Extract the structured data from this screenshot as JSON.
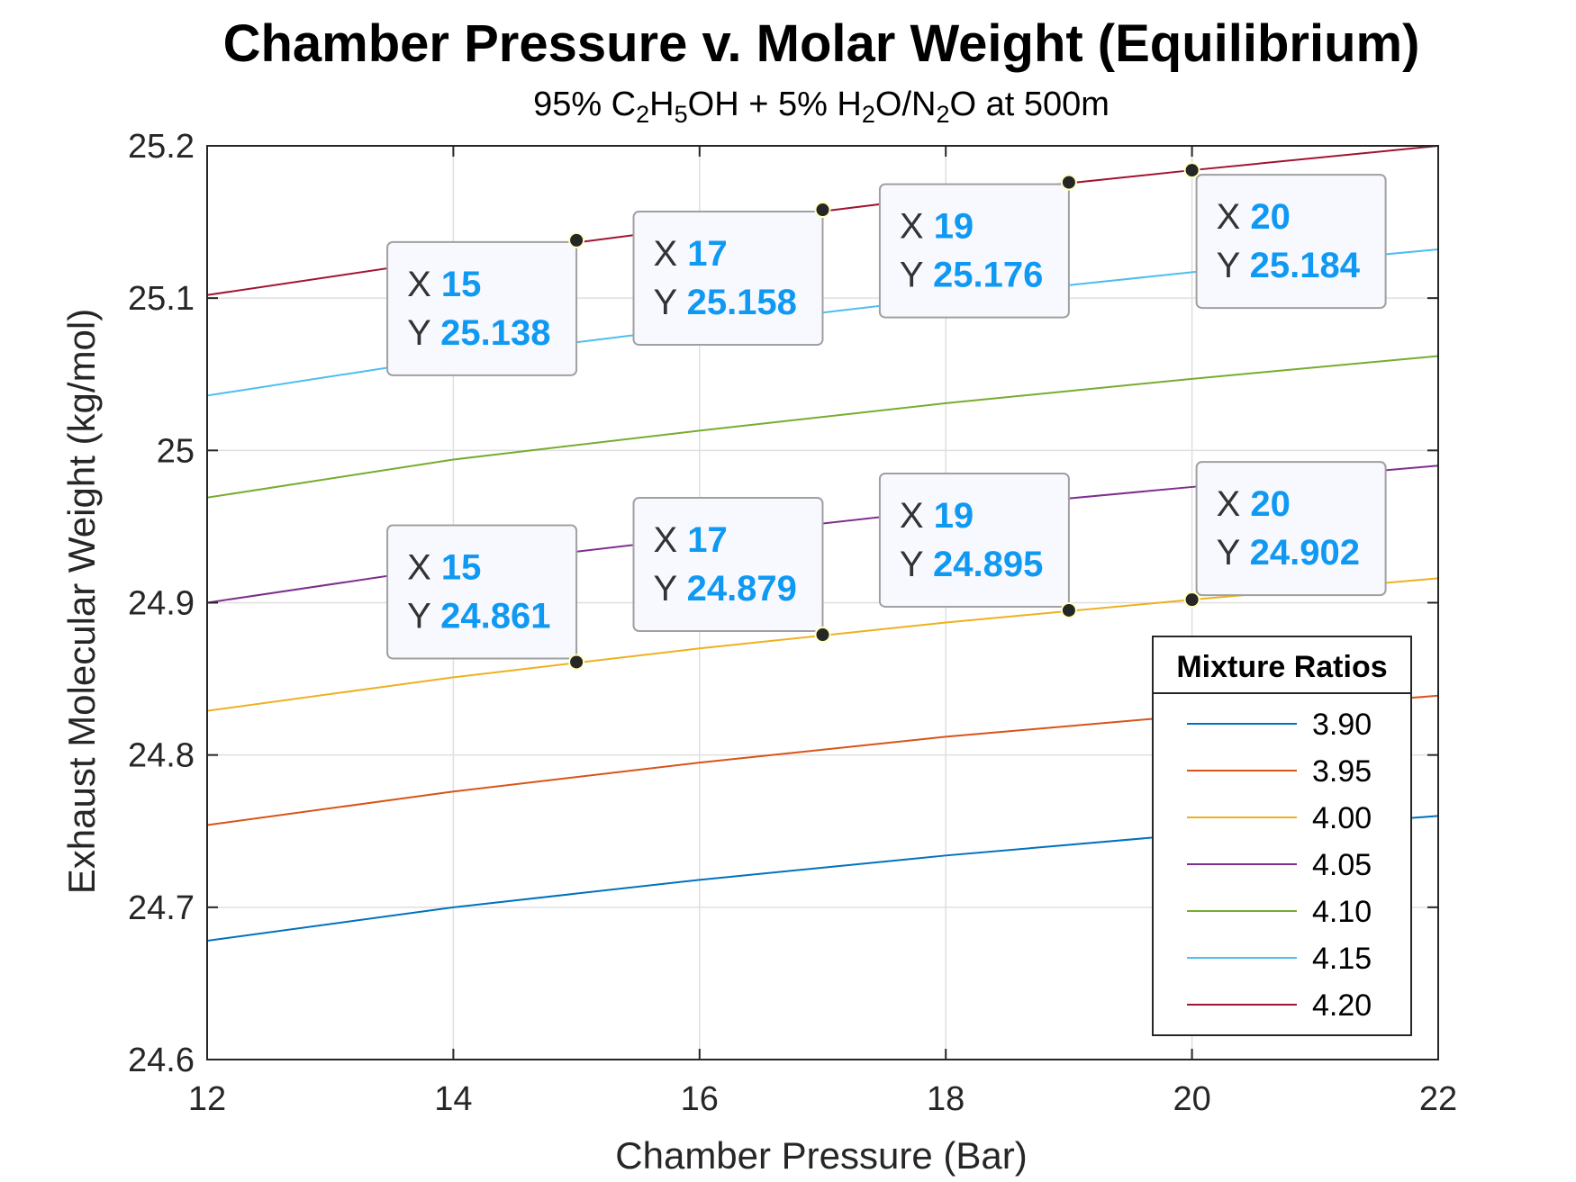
{
  "chart_data": {
    "type": "line",
    "title": "Chamber Pressure v. Molar Weight (Equilibrium)",
    "subtitle_parts": [
      {
        "t": "95% C",
        "sub": false
      },
      {
        "t": "2",
        "sub": true
      },
      {
        "t": "H",
        "sub": false
      },
      {
        "t": "5",
        "sub": true
      },
      {
        "t": "OH + 5% H",
        "sub": false
      },
      {
        "t": "2",
        "sub": true
      },
      {
        "t": "O/N",
        "sub": false
      },
      {
        "t": "2",
        "sub": true
      },
      {
        "t": "O at 500m",
        "sub": false
      }
    ],
    "xlabel": "Chamber Pressure (Bar)",
    "ylabel": "Exhaust Molecular Weight (kg/mol)",
    "xlim": [
      12,
      22
    ],
    "ylim": [
      24.6,
      25.2
    ],
    "xticks": [
      12,
      14,
      16,
      18,
      20,
      22
    ],
    "yticks": [
      24.6,
      24.7,
      24.8,
      24.9,
      25,
      25.1,
      25.2
    ],
    "xtick_labels": [
      "12",
      "14",
      "16",
      "18",
      "20",
      "22"
    ],
    "ytick_labels": [
      "24.6",
      "24.7",
      "24.8",
      "24.9",
      "25",
      "25.1",
      "25.2"
    ],
    "grid": true,
    "x": [
      12,
      14,
      16,
      18,
      20,
      22
    ],
    "series": [
      {
        "name": "3.90",
        "color": "#0072bd",
        "values": [
          24.678,
          24.7,
          24.718,
          24.734,
          24.748,
          24.76
        ]
      },
      {
        "name": "3.95",
        "color": "#d95319",
        "values": [
          24.754,
          24.776,
          24.795,
          24.812,
          24.826,
          24.839
        ]
      },
      {
        "name": "4.00",
        "color": "#edb120",
        "values": [
          24.829,
          24.851,
          24.87,
          24.887,
          24.902,
          24.916
        ]
      },
      {
        "name": "4.05",
        "color": "#7e2f8e",
        "values": [
          24.9,
          24.924,
          24.943,
          24.961,
          24.976,
          24.99
        ]
      },
      {
        "name": "4.10",
        "color": "#77ac30",
        "values": [
          24.969,
          24.994,
          25.013,
          25.031,
          25.047,
          25.062
        ]
      },
      {
        "name": "4.15",
        "color": "#4dbeee",
        "values": [
          25.036,
          25.061,
          25.081,
          25.1,
          25.117,
          25.132
        ]
      },
      {
        "name": "4.20",
        "color": "#a2142f",
        "values": [
          25.102,
          25.126,
          25.147,
          25.167,
          25.184,
          25.2
        ]
      }
    ],
    "legend": {
      "title": "Mixture Ratios",
      "placement": "bottom-right"
    },
    "datatips": [
      {
        "x": 15,
        "y": 25.138,
        "x_label": "15",
        "y_label": "25.138"
      },
      {
        "x": 17,
        "y": 25.158,
        "x_label": "17",
        "y_label": "25.158"
      },
      {
        "x": 19,
        "y": 25.176,
        "x_label": "19",
        "y_label": "25.176"
      },
      {
        "x": 20,
        "y": 25.184,
        "x_label": "20",
        "y_label": "25.184"
      },
      {
        "x": 15,
        "y": 24.861,
        "x_label": "15",
        "y_label": "24.861"
      },
      {
        "x": 17,
        "y": 24.879,
        "x_label": "17",
        "y_label": "24.879"
      },
      {
        "x": 19,
        "y": 24.895,
        "x_label": "19",
        "y_label": "24.895"
      },
      {
        "x": 20,
        "y": 24.902,
        "x_label": "20",
        "y_label": "24.902"
      }
    ],
    "datatip_prefix_x": "X",
    "datatip_prefix_y": "Y"
  }
}
